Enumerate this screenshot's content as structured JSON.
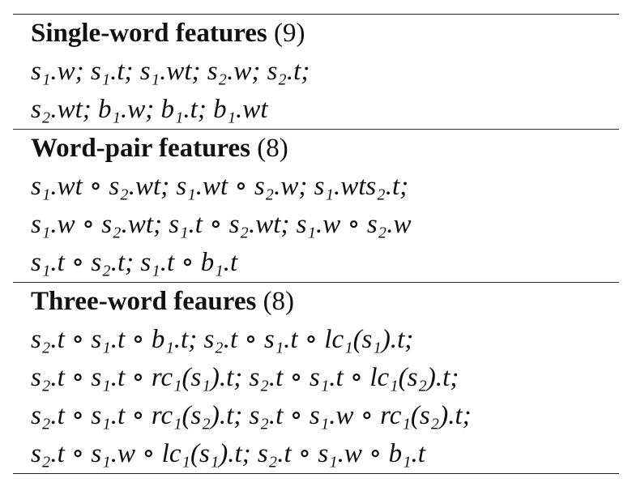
{
  "sections": [
    {
      "title": "Single-word features",
      "count": "(9)",
      "rows": [
        "s₁.w; s₁.t; s₁.wt; s₂.w; s₂.t;",
        "s₂.wt; b₁.w; b₁.t; b₁.wt"
      ]
    },
    {
      "title": "Word-pair features",
      "count": "(8)",
      "rows": [
        "s₁.wt ∘ s₂.wt; s₁.wt ∘ s₂.w; s₁.wts₂.t;",
        "s₁.w ∘ s₂.wt; s₁.t ∘ s₂.wt; s₁.w ∘ s₂.w",
        "s₁.t ∘ s₂.t; s₁.t ∘ b₁.t"
      ]
    },
    {
      "title": "Three-word feaures",
      "count": "(8)",
      "rows": [
        "s₂.t ∘ s₁.t ∘ b₁.t; s₂.t ∘ s₁.t ∘ lc₁(s₁).t;",
        "s₂.t ∘ s₁.t ∘ rc₁(s₁).t; s₂.t ∘ s₁.t ∘ lc₁(s₂).t;",
        "s₂.t ∘ s₁.t ∘ rc₁(s₂).t; s₂.t ∘ s₁.w ∘ rc₁(s₂).t;",
        "s₂.t ∘ s₁.w ∘ lc₁(s₁).t; s₂.t ∘ s₁.w ∘ b₁.t"
      ]
    }
  ]
}
